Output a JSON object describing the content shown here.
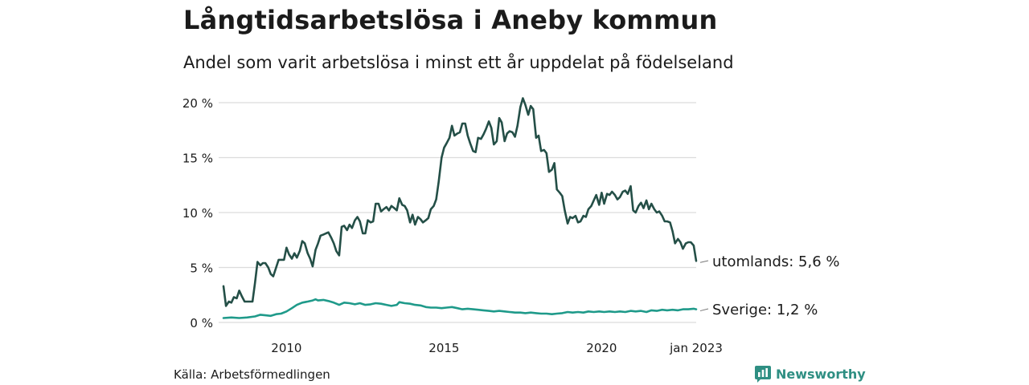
{
  "title": "Långtidsarbetslösa i Aneby kommun",
  "subtitle": "Andel som varit arbetslösa i minst ett år uppdelat på födelseland",
  "source": "Källa: Arbetsförmedlingen",
  "brand": "Newsworthy",
  "colors": {
    "utomlands": "#244f47",
    "sverige": "#1f9a8a",
    "grid": "#dcdcdc",
    "brand": "#2f8f83"
  },
  "chart_data": {
    "type": "line",
    "x_unit": "year",
    "xlim": [
      2008.0,
      2023.0
    ],
    "ylim": [
      0,
      20
    ],
    "y_ticks": [
      {
        "value": 0,
        "label": "0 %"
      },
      {
        "value": 5,
        "label": "5 %"
      },
      {
        "value": 10,
        "label": "10 %"
      },
      {
        "value": 15,
        "label": "15 %"
      },
      {
        "value": 20,
        "label": "20 %"
      }
    ],
    "x_ticks": [
      {
        "value": 2010,
        "label": "2010"
      },
      {
        "value": 2015,
        "label": "2015"
      },
      {
        "value": 2020,
        "label": "2020"
      },
      {
        "value": 2023.0,
        "label": "jan 2023"
      }
    ],
    "grid": "horizontal",
    "series": [
      {
        "name": "utomlands",
        "end_label": "utomlands: 5,6 %",
        "color": "#244f47",
        "points": [
          [
            2008.0,
            3.3
          ],
          [
            2008.08,
            1.5
          ],
          [
            2008.17,
            1.9
          ],
          [
            2008.25,
            1.8
          ],
          [
            2008.33,
            2.3
          ],
          [
            2008.42,
            2.2
          ],
          [
            2008.5,
            2.9
          ],
          [
            2008.58,
            2.4
          ],
          [
            2008.67,
            1.9
          ],
          [
            2008.75,
            1.9
          ],
          [
            2008.83,
            1.9
          ],
          [
            2008.92,
            1.9
          ],
          [
            2009.0,
            3.6
          ],
          [
            2009.08,
            5.5
          ],
          [
            2009.17,
            5.2
          ],
          [
            2009.25,
            5.4
          ],
          [
            2009.33,
            5.4
          ],
          [
            2009.42,
            5.0
          ],
          [
            2009.5,
            4.4
          ],
          [
            2009.58,
            4.2
          ],
          [
            2009.67,
            5.0
          ],
          [
            2009.75,
            5.7
          ],
          [
            2009.83,
            5.7
          ],
          [
            2009.92,
            5.7
          ],
          [
            2010.0,
            6.8
          ],
          [
            2010.08,
            6.2
          ],
          [
            2010.17,
            5.8
          ],
          [
            2010.25,
            6.3
          ],
          [
            2010.33,
            5.9
          ],
          [
            2010.42,
            6.5
          ],
          [
            2010.5,
            7.4
          ],
          [
            2010.58,
            7.2
          ],
          [
            2010.67,
            6.3
          ],
          [
            2010.75,
            5.8
          ],
          [
            2010.83,
            5.1
          ],
          [
            2010.92,
            6.6
          ],
          [
            2011.0,
            7.2
          ],
          [
            2011.08,
            7.9
          ],
          [
            2011.17,
            8.0
          ],
          [
            2011.25,
            8.1
          ],
          [
            2011.33,
            8.2
          ],
          [
            2011.42,
            7.7
          ],
          [
            2011.5,
            7.2
          ],
          [
            2011.58,
            6.5
          ],
          [
            2011.67,
            6.1
          ],
          [
            2011.75,
            8.7
          ],
          [
            2011.83,
            8.8
          ],
          [
            2011.92,
            8.4
          ],
          [
            2012.0,
            8.9
          ],
          [
            2012.08,
            8.6
          ],
          [
            2012.17,
            9.3
          ],
          [
            2012.25,
            9.6
          ],
          [
            2012.33,
            9.2
          ],
          [
            2012.42,
            8.1
          ],
          [
            2012.5,
            8.1
          ],
          [
            2012.58,
            9.3
          ],
          [
            2012.67,
            9.1
          ],
          [
            2012.75,
            9.2
          ],
          [
            2012.83,
            10.8
          ],
          [
            2012.92,
            10.8
          ],
          [
            2013.0,
            10.1
          ],
          [
            2013.08,
            10.3
          ],
          [
            2013.17,
            10.5
          ],
          [
            2013.25,
            10.2
          ],
          [
            2013.33,
            10.6
          ],
          [
            2013.42,
            10.4
          ],
          [
            2013.5,
            10.2
          ],
          [
            2013.58,
            11.3
          ],
          [
            2013.67,
            10.7
          ],
          [
            2013.75,
            10.6
          ],
          [
            2013.83,
            10.2
          ],
          [
            2013.92,
            9.1
          ],
          [
            2014.0,
            9.8
          ],
          [
            2014.08,
            8.9
          ],
          [
            2014.17,
            9.6
          ],
          [
            2014.25,
            9.4
          ],
          [
            2014.33,
            9.1
          ],
          [
            2014.42,
            9.3
          ],
          [
            2014.5,
            9.5
          ],
          [
            2014.58,
            10.3
          ],
          [
            2014.67,
            10.6
          ],
          [
            2014.75,
            11.2
          ],
          [
            2014.83,
            12.8
          ],
          [
            2014.92,
            15.0
          ],
          [
            2015.0,
            15.9
          ],
          [
            2015.08,
            16.3
          ],
          [
            2015.17,
            16.8
          ],
          [
            2015.25,
            17.9
          ],
          [
            2015.33,
            17.0
          ],
          [
            2015.42,
            17.2
          ],
          [
            2015.5,
            17.3
          ],
          [
            2015.58,
            18.1
          ],
          [
            2015.67,
            18.1
          ],
          [
            2015.75,
            17.0
          ],
          [
            2015.83,
            16.3
          ],
          [
            2015.92,
            15.6
          ],
          [
            2016.0,
            15.5
          ],
          [
            2016.08,
            16.8
          ],
          [
            2016.17,
            16.7
          ],
          [
            2016.25,
            17.1
          ],
          [
            2016.33,
            17.6
          ],
          [
            2016.42,
            18.3
          ],
          [
            2016.5,
            17.7
          ],
          [
            2016.58,
            16.2
          ],
          [
            2016.67,
            16.5
          ],
          [
            2016.75,
            18.6
          ],
          [
            2016.83,
            18.2
          ],
          [
            2016.92,
            16.5
          ],
          [
            2017.0,
            17.2
          ],
          [
            2017.08,
            17.4
          ],
          [
            2017.17,
            17.3
          ],
          [
            2017.25,
            16.9
          ],
          [
            2017.33,
            17.9
          ],
          [
            2017.42,
            19.6
          ],
          [
            2017.5,
            20.4
          ],
          [
            2017.58,
            19.8
          ],
          [
            2017.67,
            18.9
          ],
          [
            2017.75,
            19.7
          ],
          [
            2017.83,
            19.4
          ],
          [
            2017.92,
            16.8
          ],
          [
            2018.0,
            17.0
          ],
          [
            2018.08,
            15.6
          ],
          [
            2018.17,
            15.7
          ],
          [
            2018.25,
            15.4
          ],
          [
            2018.33,
            13.7
          ],
          [
            2018.42,
            13.9
          ],
          [
            2018.5,
            14.5
          ],
          [
            2018.58,
            12.1
          ],
          [
            2018.67,
            11.8
          ],
          [
            2018.75,
            11.5
          ],
          [
            2018.83,
            10.2
          ],
          [
            2018.92,
            9.0
          ],
          [
            2019.0,
            9.6
          ],
          [
            2019.08,
            9.5
          ],
          [
            2019.17,
            9.7
          ],
          [
            2019.25,
            9.1
          ],
          [
            2019.33,
            9.2
          ],
          [
            2019.42,
            9.7
          ],
          [
            2019.5,
            9.6
          ],
          [
            2019.58,
            10.3
          ],
          [
            2019.67,
            10.6
          ],
          [
            2019.75,
            11.1
          ],
          [
            2019.83,
            11.6
          ],
          [
            2019.92,
            10.7
          ],
          [
            2020.0,
            11.8
          ],
          [
            2020.08,
            10.8
          ],
          [
            2020.17,
            11.7
          ],
          [
            2020.25,
            11.6
          ],
          [
            2020.33,
            11.9
          ],
          [
            2020.42,
            11.6
          ],
          [
            2020.5,
            11.2
          ],
          [
            2020.58,
            11.4
          ],
          [
            2020.67,
            11.9
          ],
          [
            2020.75,
            12.0
          ],
          [
            2020.83,
            11.7
          ],
          [
            2020.92,
            12.4
          ],
          [
            2021.0,
            10.2
          ],
          [
            2021.08,
            10.0
          ],
          [
            2021.17,
            10.6
          ],
          [
            2021.25,
            10.9
          ],
          [
            2021.33,
            10.4
          ],
          [
            2021.42,
            11.1
          ],
          [
            2021.5,
            10.3
          ],
          [
            2021.58,
            10.8
          ],
          [
            2021.67,
            10.3
          ],
          [
            2021.75,
            10.0
          ],
          [
            2021.83,
            10.1
          ],
          [
            2021.92,
            9.7
          ],
          [
            2022.0,
            9.2
          ],
          [
            2022.08,
            9.2
          ],
          [
            2022.17,
            9.1
          ],
          [
            2022.25,
            8.3
          ],
          [
            2022.33,
            7.2
          ],
          [
            2022.42,
            7.6
          ],
          [
            2022.5,
            7.3
          ],
          [
            2022.58,
            6.7
          ],
          [
            2022.67,
            7.2
          ],
          [
            2022.75,
            7.3
          ],
          [
            2022.83,
            7.3
          ],
          [
            2022.92,
            7.0
          ],
          [
            2023.0,
            5.6
          ]
        ]
      },
      {
        "name": "Sverige",
        "end_label": "Sverige: 1,2 %",
        "color": "#1f9a8a",
        "points": [
          [
            2008.0,
            0.4
          ],
          [
            2008.25,
            0.45
          ],
          [
            2008.5,
            0.4
          ],
          [
            2008.75,
            0.45
          ],
          [
            2009.0,
            0.55
          ],
          [
            2009.17,
            0.7
          ],
          [
            2009.33,
            0.65
          ],
          [
            2009.5,
            0.6
          ],
          [
            2009.67,
            0.75
          ],
          [
            2009.83,
            0.8
          ],
          [
            2010.0,
            1.0
          ],
          [
            2010.17,
            1.3
          ],
          [
            2010.33,
            1.6
          ],
          [
            2010.5,
            1.8
          ],
          [
            2010.67,
            1.9
          ],
          [
            2010.83,
            2.0
          ],
          [
            2010.92,
            2.1
          ],
          [
            2011.0,
            2.0
          ],
          [
            2011.17,
            2.05
          ],
          [
            2011.33,
            1.95
          ],
          [
            2011.5,
            1.8
          ],
          [
            2011.67,
            1.6
          ],
          [
            2011.83,
            1.8
          ],
          [
            2012.0,
            1.75
          ],
          [
            2012.17,
            1.65
          ],
          [
            2012.33,
            1.75
          ],
          [
            2012.5,
            1.6
          ],
          [
            2012.67,
            1.65
          ],
          [
            2012.83,
            1.75
          ],
          [
            2013.0,
            1.7
          ],
          [
            2013.17,
            1.6
          ],
          [
            2013.33,
            1.5
          ],
          [
            2013.5,
            1.6
          ],
          [
            2013.58,
            1.85
          ],
          [
            2013.75,
            1.75
          ],
          [
            2013.92,
            1.7
          ],
          [
            2014.08,
            1.6
          ],
          [
            2014.25,
            1.55
          ],
          [
            2014.42,
            1.4
          ],
          [
            2014.58,
            1.35
          ],
          [
            2014.75,
            1.35
          ],
          [
            2014.92,
            1.3
          ],
          [
            2015.08,
            1.35
          ],
          [
            2015.25,
            1.4
          ],
          [
            2015.42,
            1.3
          ],
          [
            2015.58,
            1.2
          ],
          [
            2015.75,
            1.25
          ],
          [
            2015.92,
            1.2
          ],
          [
            2016.08,
            1.15
          ],
          [
            2016.25,
            1.1
          ],
          [
            2016.42,
            1.05
          ],
          [
            2016.58,
            1.0
          ],
          [
            2016.75,
            1.05
          ],
          [
            2016.92,
            1.0
          ],
          [
            2017.08,
            0.95
          ],
          [
            2017.25,
            0.9
          ],
          [
            2017.42,
            0.9
          ],
          [
            2017.58,
            0.85
          ],
          [
            2017.75,
            0.9
          ],
          [
            2017.92,
            0.85
          ],
          [
            2018.08,
            0.8
          ],
          [
            2018.25,
            0.8
          ],
          [
            2018.42,
            0.75
          ],
          [
            2018.58,
            0.8
          ],
          [
            2018.75,
            0.85
          ],
          [
            2018.92,
            0.95
          ],
          [
            2019.08,
            0.9
          ],
          [
            2019.25,
            0.95
          ],
          [
            2019.42,
            0.9
          ],
          [
            2019.58,
            1.0
          ],
          [
            2019.75,
            0.95
          ],
          [
            2019.92,
            1.0
          ],
          [
            2020.08,
            0.95
          ],
          [
            2020.25,
            1.0
          ],
          [
            2020.42,
            0.95
          ],
          [
            2020.58,
            1.0
          ],
          [
            2020.75,
            0.95
          ],
          [
            2020.92,
            1.05
          ],
          [
            2021.08,
            1.0
          ],
          [
            2021.25,
            1.05
          ],
          [
            2021.42,
            0.95
          ],
          [
            2021.58,
            1.1
          ],
          [
            2021.75,
            1.05
          ],
          [
            2021.92,
            1.15
          ],
          [
            2022.08,
            1.1
          ],
          [
            2022.25,
            1.15
          ],
          [
            2022.42,
            1.1
          ],
          [
            2022.58,
            1.2
          ],
          [
            2022.75,
            1.2
          ],
          [
            2022.92,
            1.25
          ],
          [
            2023.0,
            1.2
          ]
        ]
      }
    ]
  }
}
